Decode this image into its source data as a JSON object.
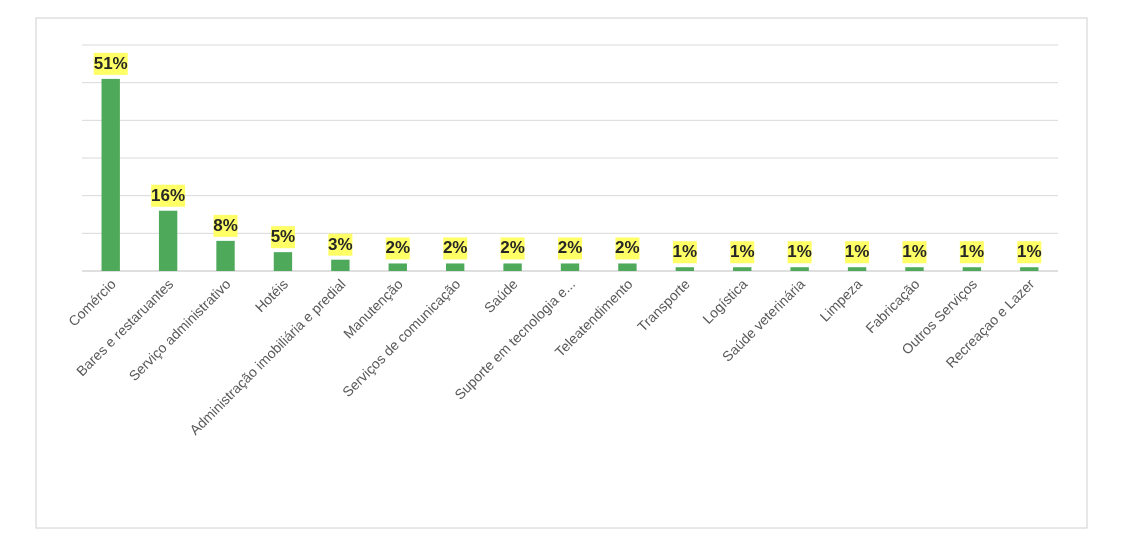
{
  "chart_data": {
    "type": "bar",
    "categories": [
      "Comércio",
      "Bares e restaruantes",
      "Serviço administrativo",
      "Hotéis",
      "Administração imobiliária e predial",
      "Manutenção",
      "Serviços de comunicação",
      "Saúde",
      "Suporte em tecnologia e...",
      "Teleatendimento",
      "Transporte",
      "Logística",
      "Saúde veterinária",
      "Limpeza",
      "Fabricação",
      "Outros Serviços",
      "Recreaçao e Lazer"
    ],
    "values": [
      51,
      16,
      8,
      5,
      3,
      2,
      2,
      2,
      2,
      2,
      1,
      1,
      1,
      1,
      1,
      1,
      1
    ],
    "value_labels": [
      "51%",
      "16%",
      "8%",
      "5%",
      "3%",
      "2%",
      "2%",
      "2%",
      "2%",
      "2%",
      "1%",
      "1%",
      "1%",
      "1%",
      "1%",
      "1%",
      "1%"
    ],
    "color": "#4ea95a",
    "ylim": [
      0,
      60
    ],
    "yticks": [
      {
        "value": 0,
        "label": null
      },
      {
        "value": 10,
        "label": null
      },
      {
        "value": 20,
        "label": null
      },
      {
        "value": 30,
        "label": null
      },
      {
        "value": 40,
        "label": null
      },
      {
        "value": 50,
        "label": null
      },
      {
        "value": 60,
        "label": null
      }
    ],
    "grid": "y",
    "tick_labels": "x"
  }
}
